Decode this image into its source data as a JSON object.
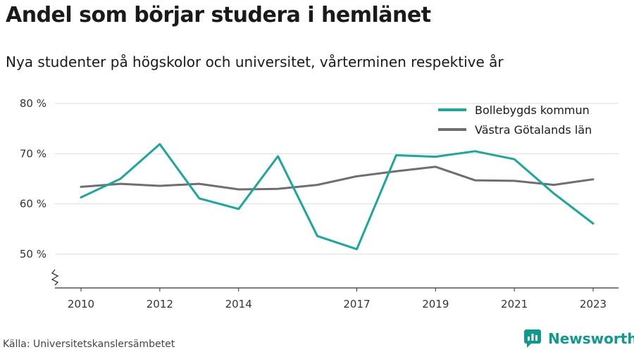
{
  "title": "Andel som börjar studera i hemlänet",
  "subtitle": "Nya studenter på högskolor och universitet, vårterminen respektive år",
  "source": "Källa: Universitetskanslersämbetet",
  "brand": "Newsworthy",
  "chart_data": {
    "type": "line",
    "x": [
      2010,
      2011,
      2012,
      2013,
      2014,
      2015,
      2016,
      2017,
      2018,
      2019,
      2020,
      2021,
      2022,
      2023
    ],
    "x_ticks": [
      2010,
      2012,
      2014,
      2017,
      2019,
      2021,
      2023
    ],
    "x_tick_labels": [
      "2010",
      "2012",
      "2014",
      "2017",
      "2019",
      "2021",
      "2023"
    ],
    "y_ticks": [
      50,
      60,
      70,
      80
    ],
    "y_tick_labels": [
      "50 %",
      "60 %",
      "70 %",
      "80 %"
    ],
    "ylim": [
      45,
      80
    ],
    "axis_break": true,
    "grid": true,
    "legend_position": "top-right",
    "series": [
      {
        "name": "Bollebygds kommun",
        "color": "#1aa898",
        "values": [
          61.3,
          65.0,
          71.9,
          61.1,
          59.0,
          69.5,
          53.6,
          51.0,
          69.7,
          69.4,
          70.5,
          68.9,
          62.1,
          56.1
        ]
      },
      {
        "name": "Västra Götalands län",
        "color": "#6e6e74",
        "values": [
          63.4,
          64.0,
          63.6,
          64.0,
          62.9,
          63.0,
          63.8,
          65.5,
          66.5,
          67.4,
          64.7,
          64.6,
          63.8,
          64.9
        ]
      }
    ]
  }
}
